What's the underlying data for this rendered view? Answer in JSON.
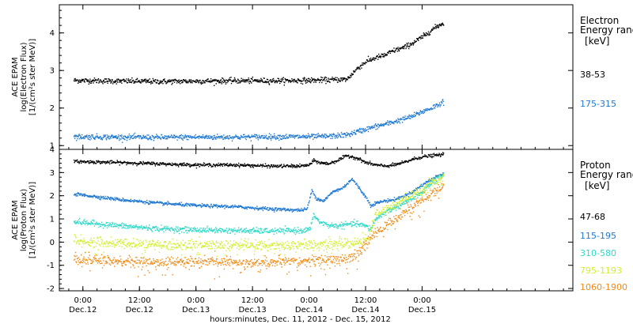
{
  "chart_data": {
    "type": "scatter",
    "x_axis": {
      "label": "hours:minutes, Dec. 11, 2012 - Dec. 15, 2012",
      "unit": "hours since Dec. 12 00:00",
      "range": [
        -5,
        104
      ],
      "ticks": [
        {
          "x": 0,
          "time": "0:00",
          "date": "Dec.12"
        },
        {
          "x": 12,
          "time": "12:00",
          "date": "Dec.12"
        },
        {
          "x": 24,
          "time": "0:00",
          "date": "Dec.13"
        },
        {
          "x": 36,
          "time": "12:00",
          "date": "Dec.13"
        },
        {
          "x": 48,
          "time": "0:00",
          "date": "Dec.14"
        },
        {
          "x": 60,
          "time": "12:00",
          "date": "Dec.14"
        },
        {
          "x": 72,
          "time": "0:00",
          "date": "Dec.15"
        }
      ]
    },
    "panels": [
      {
        "instrument": "ACE EPAM",
        "ylabel": "log(Electron Flux)",
        "yunit": "[1/(cm²s ster MeV)]",
        "ylim": [
          0.9,
          4.75
        ],
        "yticks": [
          1,
          2,
          3,
          4
        ],
        "legend_title_1": "Electron",
        "legend_title_2": "Energy range",
        "legend_unit": "[keV]",
        "series": [
          {
            "name": "38-53",
            "color": "#000000",
            "x": [
              -2,
              8,
              16,
              24,
              32,
              40,
              48,
              52,
              56,
              58,
              60,
              62,
              64,
              66,
              68,
              70,
              72.5,
              74,
              75.5,
              76.5
            ],
            "y": [
              2.75,
              2.73,
              2.72,
              2.73,
              2.74,
              2.74,
              2.75,
              2.76,
              2.78,
              3.05,
              3.25,
              3.35,
              3.42,
              3.55,
              3.62,
              3.75,
              3.95,
              4.1,
              4.22,
              4.28
            ]
          },
          {
            "name": "175-315",
            "color": "#1e78d2",
            "x": [
              -2,
              8,
              16,
              24,
              32,
              40,
              48,
              52,
              56,
              58,
              60,
              62,
              64,
              66,
              68,
              70,
              72,
              74,
              75.5,
              76.5
            ],
            "y": [
              1.25,
              1.24,
              1.23,
              1.24,
              1.24,
              1.25,
              1.25,
              1.26,
              1.3,
              1.38,
              1.45,
              1.52,
              1.58,
              1.65,
              1.72,
              1.8,
              1.92,
              2.02,
              2.12,
              2.18
            ]
          }
        ]
      },
      {
        "instrument": "ACE EPAM",
        "ylabel": "log(Proton Flux)",
        "yunit": "[1/(cm²s ster MeV)]",
        "ylim": [
          -2.1,
          4.0
        ],
        "yticks": [
          -2,
          -1,
          0,
          1,
          2,
          3,
          4
        ],
        "legend_title_1": "Proton",
        "legend_title_2": "Energy range",
        "legend_unit": "[keV]",
        "series": [
          {
            "name": "47-68",
            "color": "#000000",
            "x": [
              -2,
              8,
              16,
              24,
              32,
              40,
              46,
              48,
              49,
              50,
              52,
              54,
              56,
              58,
              60,
              62,
              64,
              66,
              68,
              70,
              72,
              74,
              76.5
            ],
            "y": [
              3.5,
              3.45,
              3.4,
              3.35,
              3.35,
              3.3,
              3.3,
              3.35,
              3.55,
              3.45,
              3.4,
              3.55,
              3.75,
              3.65,
              3.45,
              3.35,
              3.3,
              3.35,
              3.45,
              3.6,
              3.7,
              3.75,
              3.8
            ]
          },
          {
            "name": "115-195",
            "color": "#1e78d2",
            "x": [
              -2,
              8,
              16,
              24,
              32,
              40,
              46,
              47.5,
              48.5,
              49.5,
              51,
              53,
              55,
              57,
              58,
              60,
              61,
              62,
              64,
              66,
              68,
              70,
              72,
              74,
              76.5
            ],
            "y": [
              2.1,
              1.85,
              1.7,
              1.6,
              1.55,
              1.45,
              1.4,
              1.45,
              2.25,
              1.9,
              1.8,
              2.2,
              2.35,
              2.75,
              2.5,
              1.95,
              1.6,
              1.7,
              1.8,
              1.85,
              2.0,
              2.2,
              2.5,
              2.75,
              3.0
            ]
          },
          {
            "name": "310-580",
            "color": "#2fd9c8",
            "x": [
              -2,
              8,
              16,
              24,
              32,
              40,
              46,
              48,
              49,
              50,
              52,
              54,
              56,
              58,
              60,
              61,
              62,
              64,
              66,
              68,
              70,
              72,
              74,
              76.5
            ],
            "y": [
              0.9,
              0.72,
              0.6,
              0.55,
              0.52,
              0.5,
              0.52,
              0.55,
              1.2,
              0.9,
              0.75,
              0.72,
              0.78,
              0.82,
              0.7,
              0.6,
              1.0,
              1.3,
              1.5,
              1.7,
              1.9,
              2.2,
              2.6,
              2.9
            ]
          },
          {
            "name": "795-1193",
            "color": "#d4ee2a",
            "x": [
              -2,
              8,
              16,
              24,
              32,
              40,
              48,
              52,
              56,
              58,
              60,
              61,
              62,
              64,
              66,
              68,
              70,
              72,
              74,
              76.5
            ],
            "y": [
              0.1,
              -0.05,
              -0.1,
              -0.1,
              -0.12,
              -0.1,
              -0.1,
              -0.05,
              -0.02,
              0.0,
              0.1,
              0.5,
              1.2,
              1.4,
              1.6,
              1.85,
              2.05,
              2.3,
              2.6,
              2.85
            ]
          },
          {
            "name": "1060-1900",
            "color": "#f28a14",
            "x": [
              -2,
              8,
              16,
              24,
              32,
              40,
              48,
              52,
              56,
              58,
              59.5,
              61,
              62,
              64,
              66,
              68,
              70,
              72,
              74,
              76.5
            ],
            "y": [
              -0.75,
              -0.8,
              -0.85,
              -0.82,
              -0.85,
              -0.85,
              -0.8,
              -0.75,
              -0.7,
              -0.55,
              -0.2,
              0.2,
              0.4,
              0.7,
              1.0,
              1.3,
              1.6,
              1.85,
              2.1,
              2.45
            ]
          }
        ]
      }
    ]
  }
}
